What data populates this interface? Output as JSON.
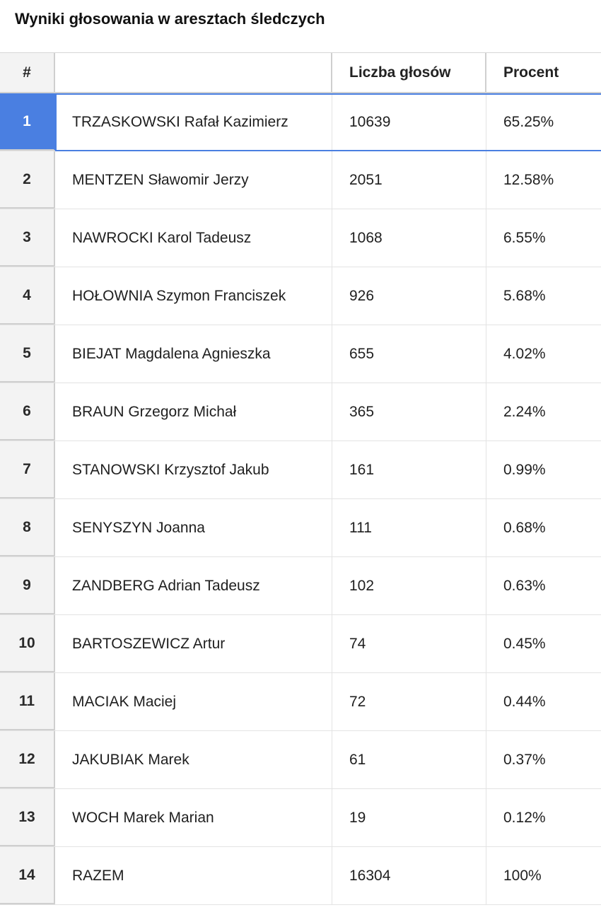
{
  "title": "Wyniki głosowania w aresztach śledczych",
  "table": {
    "headers": {
      "index": "#",
      "name": "",
      "votes": "Liczba głosów",
      "percent": "Procent"
    },
    "selected_row": "1",
    "rows": [
      {
        "index": "1",
        "name": "TRZASKOWSKI Rafał Kazimierz",
        "votes": "10639",
        "percent": "65.25%"
      },
      {
        "index": "2",
        "name": "MENTZEN Sławomir Jerzy",
        "votes": "2051",
        "percent": "12.58%"
      },
      {
        "index": "3",
        "name": "NAWROCKI Karol Tadeusz",
        "votes": "1068",
        "percent": "6.55%"
      },
      {
        "index": "4",
        "name": "HOŁOWNIA Szymon Franciszek",
        "votes": "926",
        "percent": "5.68%"
      },
      {
        "index": "5",
        "name": "BIEJAT Magdalena Agnieszka",
        "votes": "655",
        "percent": "4.02%"
      },
      {
        "index": "6",
        "name": "BRAUN Grzegorz Michał",
        "votes": "365",
        "percent": "2.24%"
      },
      {
        "index": "7",
        "name": "STANOWSKI Krzysztof Jakub",
        "votes": "161",
        "percent": "0.99%"
      },
      {
        "index": "8",
        "name": "SENYSZYN Joanna",
        "votes": "111",
        "percent": "0.68%"
      },
      {
        "index": "9",
        "name": "ZANDBERG Adrian Tadeusz",
        "votes": "102",
        "percent": "0.63%"
      },
      {
        "index": "10",
        "name": "BARTOSZEWICZ Artur",
        "votes": "74",
        "percent": "0.45%"
      },
      {
        "index": "11",
        "name": "MACIAK Maciej",
        "votes": "72",
        "percent": "0.44%"
      },
      {
        "index": "12",
        "name": "JAKUBIAK Marek",
        "votes": "61",
        "percent": "0.37%"
      },
      {
        "index": "13",
        "name": "WOCH Marek Marian",
        "votes": "19",
        "percent": "0.12%"
      },
      {
        "index": "14",
        "name": "RAZEM",
        "votes": "16304",
        "percent": "100%"
      }
    ]
  },
  "colors": {
    "selection": "#4a7fe1",
    "index_column_bg": "#f3f3f3"
  }
}
